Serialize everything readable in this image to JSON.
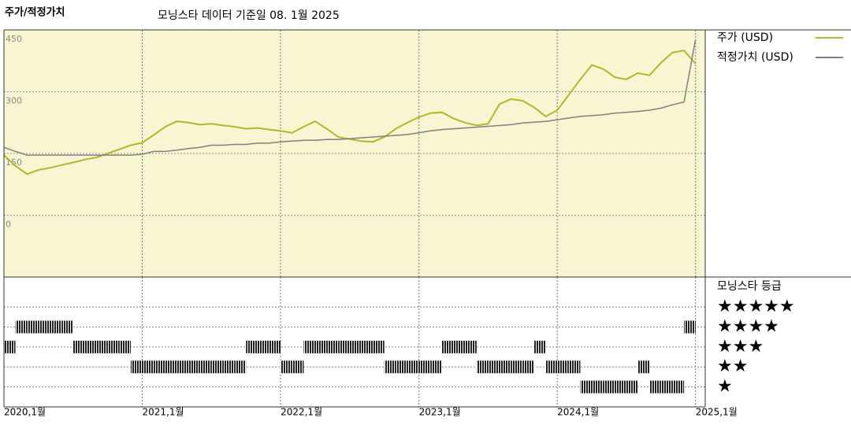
{
  "chart_data": [
    {
      "type": "line",
      "ylabel": "주가/적정가치",
      "title": "모닝스타 데이터 기준일 08. 1월 2025",
      "x": [
        2020,
        2020.083,
        2020.167,
        2020.25,
        2020.333,
        2020.417,
        2020.5,
        2020.583,
        2020.667,
        2020.75,
        2020.833,
        2020.917,
        2021,
        2021.083,
        2021.167,
        2021.25,
        2021.333,
        2021.417,
        2021.5,
        2021.583,
        2021.667,
        2021.75,
        2021.833,
        2021.917,
        2022,
        2022.083,
        2022.167,
        2022.25,
        2022.333,
        2022.417,
        2022.5,
        2022.583,
        2022.667,
        2022.75,
        2022.833,
        2022.917,
        2023,
        2023.083,
        2023.167,
        2023.25,
        2023.333,
        2023.417,
        2023.5,
        2023.583,
        2023.667,
        2023.75,
        2023.833,
        2023.917,
        2024,
        2024.083,
        2024.167,
        2024.25,
        2024.333,
        2024.417,
        2024.5,
        2024.583,
        2024.667,
        2024.75,
        2024.833,
        2024.917,
        2025
      ],
      "series": [
        {
          "name": "주가 (USD)",
          "color": "#b3b72a",
          "values": [
            146,
            120,
            100,
            110,
            115,
            122,
            128,
            135,
            140,
            150,
            160,
            170,
            176,
            195,
            215,
            228,
            225,
            220,
            222,
            218,
            215,
            210,
            212,
            208,
            205,
            200,
            215,
            228,
            210,
            190,
            185,
            180,
            178,
            190,
            210,
            225,
            238,
            248,
            250,
            235,
            225,
            218,
            222,
            270,
            282,
            278,
            262,
            240,
            255,
            292,
            330,
            365,
            355,
            335,
            330,
            345,
            340,
            370,
            395,
            400,
            368
          ]
        },
        {
          "name": "적정가치 (USD)",
          "color": "#808080",
          "values": [
            165,
            155,
            146,
            146,
            146,
            146,
            146,
            146,
            146,
            146,
            146,
            146,
            148,
            155,
            155,
            158,
            162,
            165,
            170,
            170,
            172,
            172,
            175,
            175,
            178,
            180,
            182,
            182,
            184,
            184,
            186,
            188,
            190,
            192,
            194,
            196,
            200,
            205,
            208,
            210,
            212,
            214,
            216,
            218,
            220,
            224,
            226,
            228,
            232,
            236,
            240,
            242,
            244,
            248,
            250,
            252,
            255,
            260,
            268,
            275,
            427
          ]
        }
      ],
      "xlim": [
        2020,
        2025.07
      ],
      "xticks": [
        {
          "value": 2020,
          "label": "2020,1월"
        },
        {
          "value": 2021,
          "label": "2021,1월"
        },
        {
          "value": 2022,
          "label": "2022,1월"
        },
        {
          "value": 2023,
          "label": "2023,1월"
        },
        {
          "value": 2024,
          "label": "2024,1월"
        },
        {
          "value": 2025,
          "label": "2025,1월"
        }
      ],
      "ylim": [
        -150,
        450
      ],
      "yticks": [
        0,
        150,
        300,
        450
      ],
      "grid": true,
      "background": "#f8f5d2"
    },
    {
      "type": "rating",
      "title": "모닝스타 등급",
      "x": [
        2020,
        2020.083,
        2020.167,
        2020.25,
        2020.333,
        2020.417,
        2020.5,
        2020.583,
        2020.667,
        2020.75,
        2020.833,
        2020.917,
        2021,
        2021.083,
        2021.167,
        2021.25,
        2021.333,
        2021.417,
        2021.5,
        2021.583,
        2021.667,
        2021.75,
        2021.833,
        2021.917,
        2022,
        2022.083,
        2022.167,
        2022.25,
        2022.333,
        2022.417,
        2022.5,
        2022.583,
        2022.667,
        2022.75,
        2022.833,
        2022.917,
        2023,
        2023.083,
        2023.167,
        2023.25,
        2023.333,
        2023.417,
        2023.5,
        2023.583,
        2023.667,
        2023.75,
        2023.833,
        2023.917,
        2024,
        2024.083,
        2024.167,
        2024.25,
        2024.333,
        2024.417,
        2024.5,
        2024.583,
        2024.667,
        2024.75,
        2024.833,
        2024.917
      ],
      "values": [
        3,
        4,
        4,
        4,
        4,
        4,
        3,
        3,
        3,
        3,
        3,
        2,
        2,
        2,
        2,
        2,
        2,
        2,
        2,
        2,
        2,
        3,
        3,
        3,
        2,
        2,
        3,
        3,
        3,
        3,
        3,
        3,
        3,
        2,
        2,
        2,
        2,
        2,
        3,
        3,
        3,
        2,
        2,
        2,
        2,
        2,
        3,
        2,
        2,
        2,
        1,
        1,
        1,
        1,
        1,
        2,
        1,
        1,
        1,
        4
      ],
      "ylim": [
        0,
        6.5
      ],
      "yticks": [
        {
          "value": 5,
          "label": "★★★★★"
        },
        {
          "value": 4,
          "label": "★★★★"
        },
        {
          "value": 3,
          "label": "★★★"
        },
        {
          "value": 2,
          "label": "★★"
        },
        {
          "value": 1,
          "label": "★"
        }
      ],
      "color": "#222222",
      "grid": true
    }
  ]
}
